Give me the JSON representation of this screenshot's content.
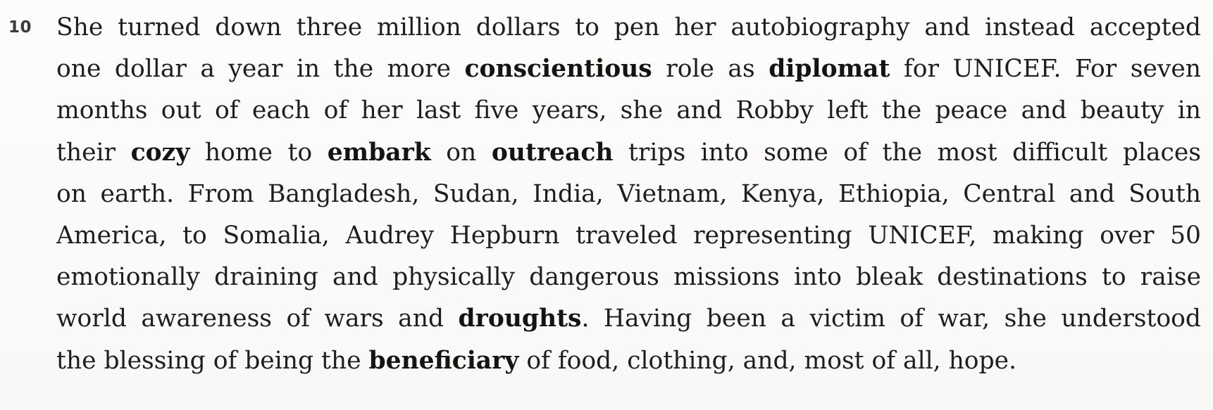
{
  "passage": {
    "line_number": "10",
    "lines": [
      {
        "parts": [
          "She turned down three million dollars to pen her autobiography and instead accepted"
        ]
      },
      {
        "parts": [
          "one dollar a year in the more ",
          "conscientious",
          " role as ",
          "diplomat",
          " for UNICEF. For seven"
        ]
      },
      {
        "parts": [
          "months out of each of her last five years, she and Robby left the peace and beauty in"
        ]
      },
      {
        "parts": [
          "their ",
          "cozy",
          " home to ",
          "embark",
          " on ",
          "outreach",
          " trips into some of the most difficult places"
        ]
      },
      {
        "parts": [
          "on earth. From Bangladesh, Sudan, India, Vietnam, Kenya, Ethiopia, Central and South"
        ]
      },
      {
        "parts": [
          "America, to Somalia, Audrey Hepburn traveled representing UNICEF, making over 50"
        ]
      },
      {
        "parts": [
          "emotionally draining and physically dangerous missions into bleak destinations to raise"
        ]
      },
      {
        "parts": [
          "world awareness of wars and ",
          "droughts",
          ". Having been a victim of war, she understood"
        ]
      },
      {
        "parts": [
          "the blessing of being the ",
          "beneficiary",
          " of food, clothing, and, most of all, hope."
        ]
      }
    ]
  }
}
